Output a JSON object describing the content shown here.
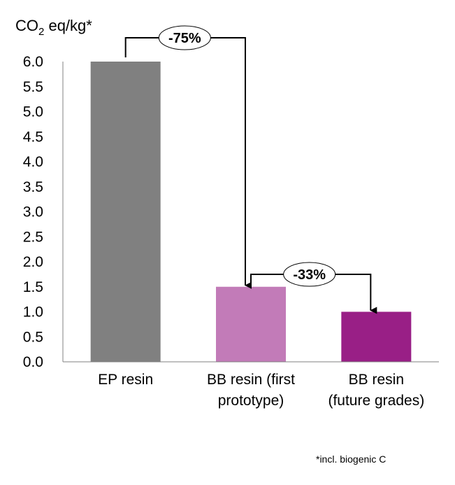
{
  "chart_data": {
    "type": "bar",
    "categories": [
      [
        "EP resin"
      ],
      [
        "BB resin (first",
        "prototype)"
      ],
      [
        "BB resin",
        "(future grades)"
      ]
    ],
    "values": [
      6.0,
      1.5,
      1.0
    ],
    "colors": [
      "#808080",
      "#c27bb8",
      "#991f86"
    ],
    "ylabel": {
      "prefix": "CO",
      "subscript": "2",
      "suffix": " eq/kg*"
    },
    "ylim": [
      0,
      6.0
    ],
    "yticks": [
      "0.0",
      "0.5",
      "1.0",
      "1.5",
      "2.0",
      "2.5",
      "3.0",
      "3.5",
      "4.0",
      "4.5",
      "5.0",
      "5.5",
      "6.0"
    ],
    "grid": false,
    "annotations": [
      {
        "label": "-75%",
        "from_category": 0,
        "to_category": 1
      },
      {
        "label": "-33%",
        "from_category": 1,
        "to_category": 2
      }
    ],
    "footnote": "*incl. biogenic C"
  }
}
